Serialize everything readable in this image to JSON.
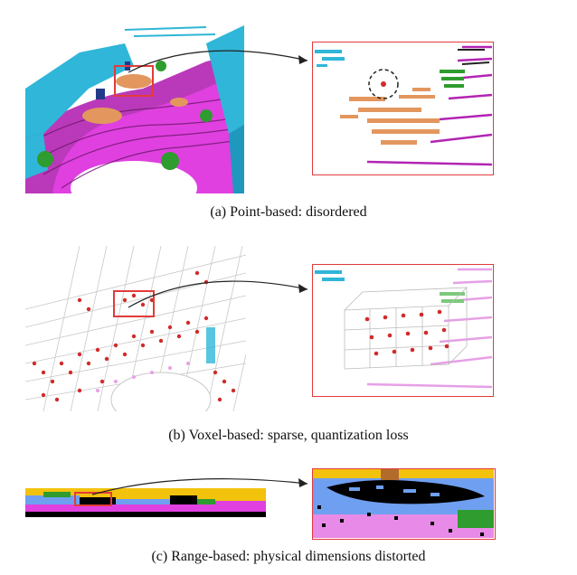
{
  "figure": {
    "captions": {
      "a": "(a) Point-based: disordered",
      "b": "(b) Voxel-based: sparse, quantization loss",
      "c": "(c) Range-based: physical dimensions distorted"
    },
    "colors": {
      "road": "#e040e0",
      "road_dark": "#8a1f8a",
      "building": "#2fb6d8",
      "vegetation": "#2e9c2e",
      "car": "#e3975e",
      "voxel_point": "#d22a2a",
      "highlight_box": "#e23b3b",
      "range_sky": "#f3c20c",
      "range_blue": "#6f9ff0",
      "range_black": "#000000"
    }
  }
}
